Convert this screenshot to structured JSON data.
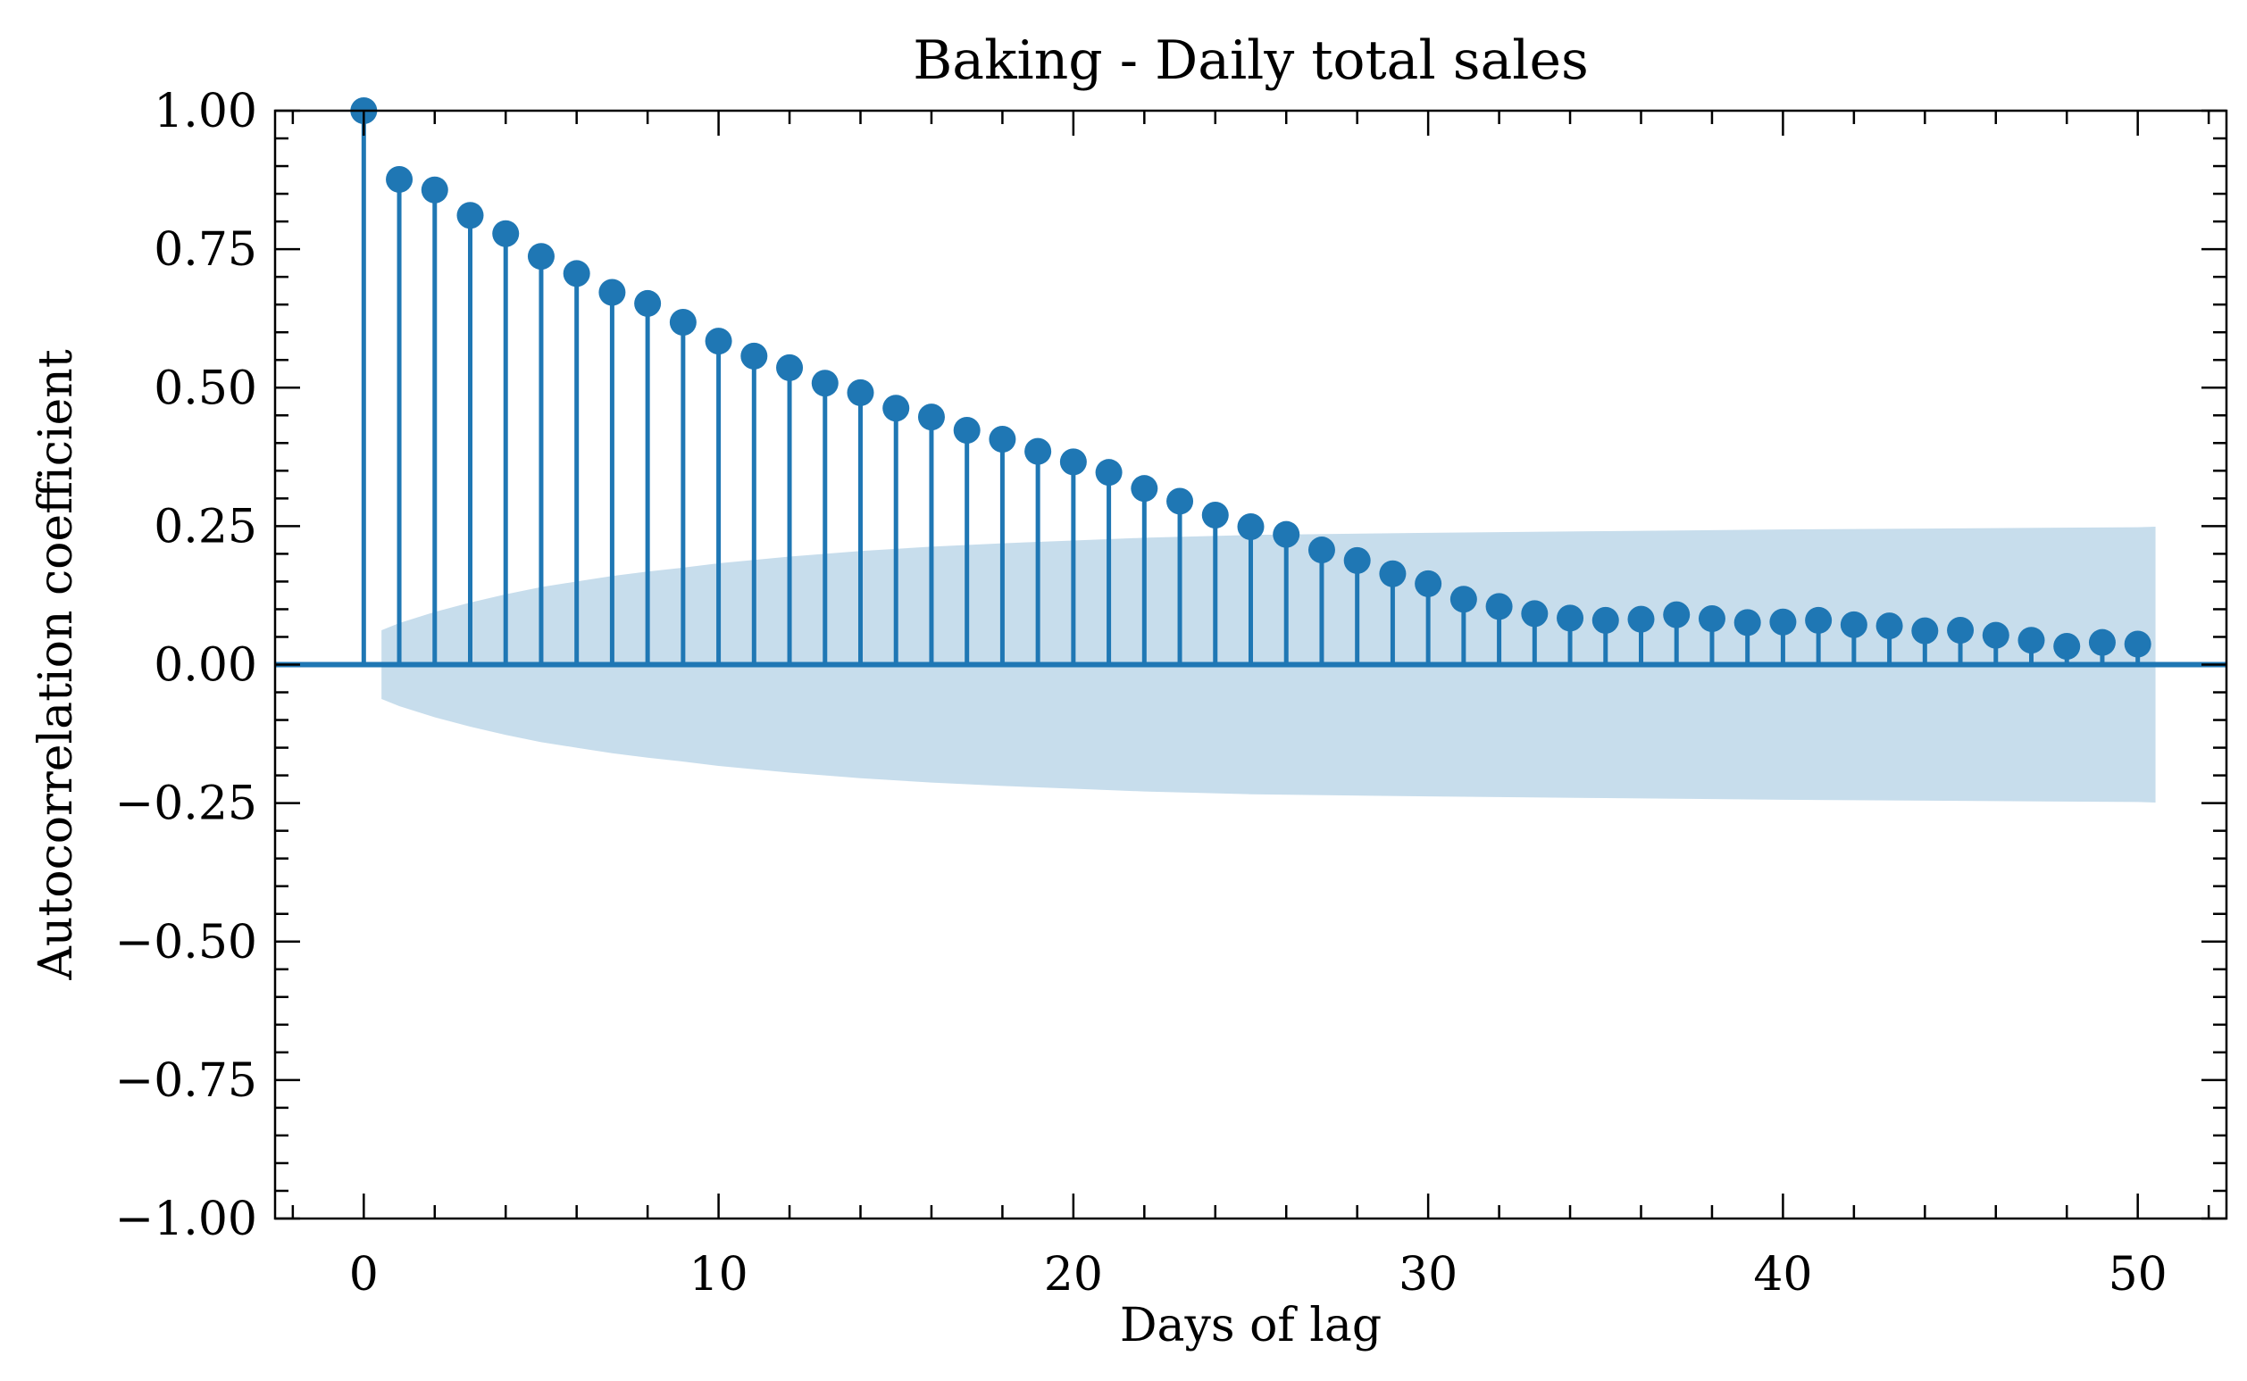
{
  "chart_data": {
    "type": "stem",
    "title": "Baking - Daily total sales",
    "xlabel": "Days of lag",
    "ylabel": "Autocorrelation coefficient",
    "xlim": [
      -2.5,
      52.5
    ],
    "ylim": [
      -1.0,
      1.0
    ],
    "xticks": [
      0,
      10,
      20,
      30,
      40,
      50
    ],
    "xtick_labels": [
      "0",
      "10",
      "20",
      "30",
      "40",
      "50"
    ],
    "yticks": [
      -1.0,
      -0.75,
      -0.5,
      -0.25,
      0.0,
      0.25,
      0.5,
      0.75,
      1.0
    ],
    "ytick_labels": [
      "−1.00",
      "−0.75",
      "−0.50",
      "−0.25",
      "0.00",
      "0.25",
      "0.50",
      "0.75",
      "1.00"
    ],
    "grid": false,
    "series": [
      {
        "color": "#1f77b4",
        "lags": [
          0,
          1,
          2,
          3,
          4,
          5,
          6,
          7,
          8,
          9,
          10,
          11,
          12,
          13,
          14,
          15,
          16,
          17,
          18,
          19,
          20,
          21,
          22,
          23,
          24,
          25,
          26,
          27,
          28,
          29,
          30,
          31,
          32,
          33,
          34,
          35,
          36,
          37,
          38,
          39,
          40,
          41,
          42,
          43,
          44,
          45,
          46,
          47,
          48,
          49,
          50
        ],
        "values": [
          1.0,
          0.876,
          0.857,
          0.811,
          0.778,
          0.737,
          0.706,
          0.672,
          0.652,
          0.618,
          0.584,
          0.557,
          0.536,
          0.508,
          0.491,
          0.463,
          0.447,
          0.423,
          0.407,
          0.385,
          0.366,
          0.347,
          0.318,
          0.295,
          0.27,
          0.249,
          0.235,
          0.207,
          0.188,
          0.164,
          0.146,
          0.118,
          0.105,
          0.092,
          0.084,
          0.08,
          0.082,
          0.09,
          0.083,
          0.076,
          0.077,
          0.08,
          0.072,
          0.07,
          0.061,
          0.062,
          0.053,
          0.044,
          0.033,
          0.04,
          0.037
        ]
      }
    ],
    "confidence_band": {
      "color": "#1f77b4",
      "opacity": 0.25,
      "lags": [
        0.5,
        1,
        2,
        3,
        4,
        5,
        6,
        7,
        8,
        9,
        10,
        12,
        14,
        16,
        18,
        20,
        22,
        25,
        30,
        35,
        40,
        45,
        50,
        50.5
      ],
      "upper": [
        0.062,
        0.075,
        0.095,
        0.112,
        0.127,
        0.14,
        0.15,
        0.16,
        0.168,
        0.175,
        0.183,
        0.195,
        0.205,
        0.213,
        0.219,
        0.224,
        0.229,
        0.234,
        0.238,
        0.241,
        0.244,
        0.246,
        0.248,
        0.249
      ]
    },
    "zero_line": true
  }
}
